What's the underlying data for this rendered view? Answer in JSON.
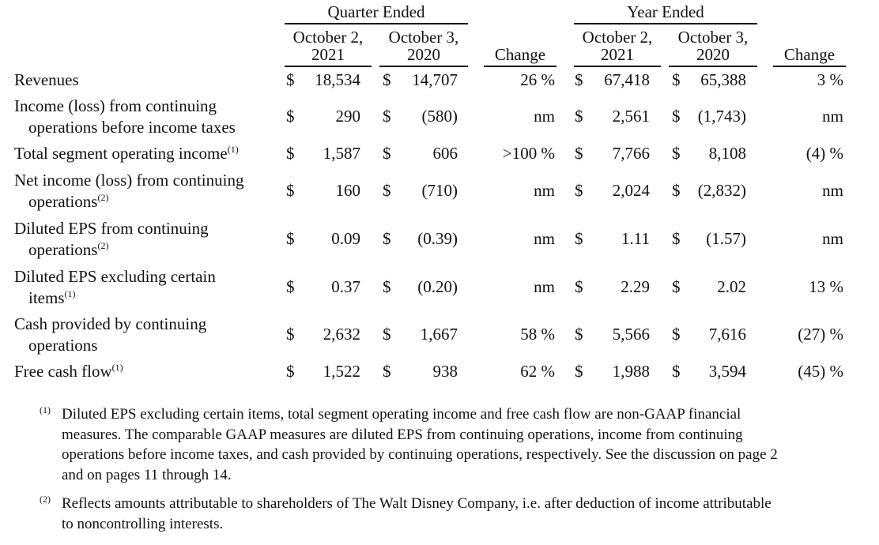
{
  "headers": {
    "quarter_group": "Quarter Ended",
    "year_group": "Year Ended",
    "q_col1": [
      "October 2,",
      "2021"
    ],
    "q_col2": [
      "October 3,",
      "2020"
    ],
    "q_change": "Change",
    "y_col1": [
      "October 2,",
      "2021"
    ],
    "y_col2": [
      "October 3,",
      "2020"
    ],
    "y_change": "Change"
  },
  "rows": [
    {
      "label": [
        "Revenues"
      ],
      "sup": "",
      "q1": "18,534",
      "q2": "14,707",
      "qc": "26 %",
      "y1": "67,418",
      "y2": "65,388",
      "yc": "3 %"
    },
    {
      "label": [
        "Income (loss) from continuing",
        "operations before income taxes"
      ],
      "sup": "",
      "q1": "290",
      "q2": "(580)",
      "qc": "nm",
      "y1": "2,561",
      "y2": "(1,743)",
      "yc": "nm"
    },
    {
      "label": [
        "Total segment operating income"
      ],
      "sup": "(1)",
      "q1": "1,587",
      "q2": "606",
      "qc": ">100 %",
      "y1": "7,766",
      "y2": "8,108",
      "yc": "(4) %"
    },
    {
      "label": [
        "Net income (loss) from continuing",
        "operations"
      ],
      "sup": "(2)",
      "q1": "160",
      "q2": "(710)",
      "qc": "nm",
      "y1": "2,024",
      "y2": "(2,832)",
      "yc": "nm"
    },
    {
      "label": [
        "Diluted EPS from continuing",
        "operations"
      ],
      "sup": "(2)",
      "q1": "0.09",
      "q2": "(0.39)",
      "qc": "nm",
      "y1": "1.11",
      "y2": "(1.57)",
      "yc": "nm"
    },
    {
      "label": [
        "Diluted EPS excluding certain",
        "items"
      ],
      "sup": "(1)",
      "q1": "0.37",
      "q2": "(0.20)",
      "qc": "nm",
      "y1": "2.29",
      "y2": "2.02",
      "yc": "13 %"
    },
    {
      "label": [
        "Cash provided by continuing",
        "operations"
      ],
      "sup": "",
      "q1": "2,632",
      "q2": "1,667",
      "qc": "58 %",
      "y1": "5,566",
      "y2": "7,616",
      "yc": "(27) %"
    },
    {
      "label": [
        "Free cash flow"
      ],
      "sup": "(1)",
      "q1": "1,522",
      "q2": "938",
      "qc": "62 %",
      "y1": "1,988",
      "y2": "3,594",
      "yc": "(45) %"
    }
  ],
  "currency_symbol": "$",
  "footnotes": [
    {
      "mark": "(1)",
      "lines": [
        "Diluted EPS excluding certain items, total segment operating income and free cash flow are non-GAAP financial",
        "measures. The comparable GAAP measures are diluted EPS from continuing operations, income from continuing",
        "operations before income taxes, and cash provided by continuing operations, respectively. See the discussion on page 2",
        "and on pages 11 through 14."
      ]
    },
    {
      "mark": "(2)",
      "lines": [
        "Reflects amounts attributable to shareholders of The Walt Disney Company, i.e. after deduction of income attributable",
        "to noncontrolling interests."
      ]
    }
  ]
}
